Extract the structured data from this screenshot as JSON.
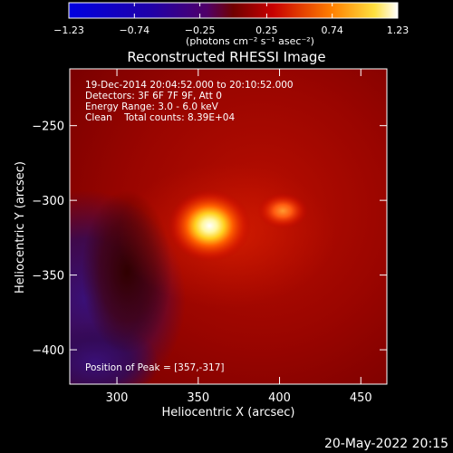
{
  "chart_data": {
    "type": "heatmap",
    "title": "Reconstructed RHESSI Image",
    "xlabel": "Heliocentric X (arcsec)",
    "ylabel": "Heliocentric Y (arcsec)",
    "xlim": [
      271,
      466
    ],
    "ylim": [
      -423,
      -212
    ],
    "x_ticks": [
      300,
      350,
      400,
      450
    ],
    "x_tick_labels": [
      "300",
      "350",
      "400",
      "450"
    ],
    "y_ticks": [
      -250,
      -300,
      -350,
      -400
    ],
    "y_tick_labels": [
      "−250",
      "−300",
      "−350",
      "−400"
    ],
    "colorbar": {
      "range": [
        -1.23,
        1.23
      ],
      "ticks": [
        -1.23,
        -0.74,
        -0.25,
        0.25,
        0.74,
        1.23
      ],
      "tick_labels": [
        "−1.23",
        "−0.74",
        "−0.25",
        "0.25",
        "0.74",
        "1.23"
      ],
      "unit_label": "(photons cm⁻² s⁻¹ asec⁻²)"
    },
    "sources": [
      {
        "x": 357,
        "y": -317,
        "peak": 1.23
      },
      {
        "x": 402,
        "y": -307,
        "peak": 0.74
      }
    ],
    "annotations": {
      "line1": "19-Dec-2014 20:04:52.000 to 20:10:52.000",
      "line2": "Detectors: 3F 6F 7F 9F, Att 0",
      "line3": "Energy Range: 3.0 - 6.0 keV",
      "line4": "Clean    Total counts: 8.39E+04",
      "peak": "Position of Peak = [357,-317]"
    },
    "footer_date": "20-May-2022 20:15"
  }
}
